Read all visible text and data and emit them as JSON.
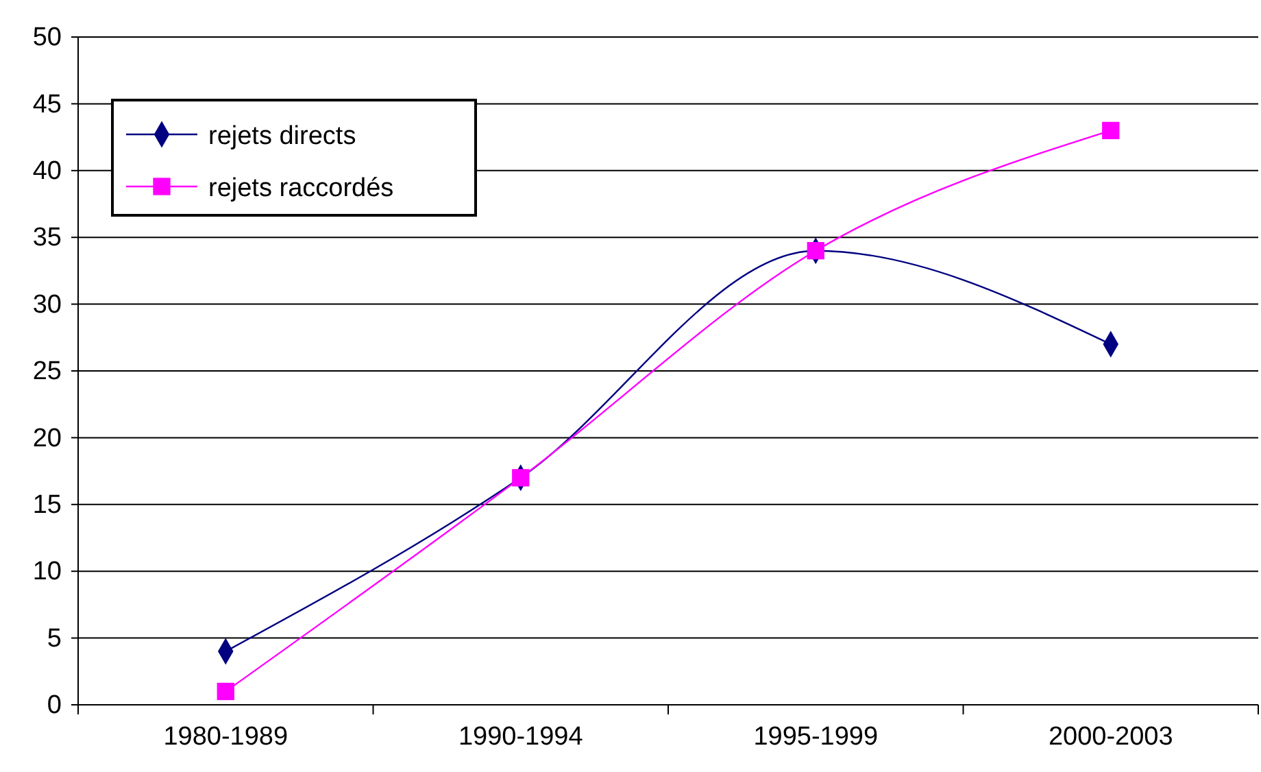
{
  "chart_data": {
    "type": "line",
    "categories": [
      "1980-1989",
      "1990-1994",
      "1995-1999",
      "2000-2003"
    ],
    "series": [
      {
        "name": "rejets directs",
        "color": "#000080",
        "marker": "diamond",
        "values": [
          4,
          17,
          34,
          27
        ]
      },
      {
        "name": "rejets raccordés",
        "color": "#ff00ff",
        "marker": "square",
        "values": [
          1,
          17,
          34,
          43
        ]
      }
    ],
    "ylim": [
      0,
      50
    ],
    "yticks": [
      0,
      5,
      10,
      15,
      20,
      25,
      30,
      35,
      40,
      45,
      50
    ],
    "grid": "y",
    "legend": "top left"
  }
}
